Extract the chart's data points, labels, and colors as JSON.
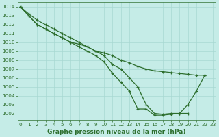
{
  "line_color": "#2d6e2d",
  "marker": "+",
  "markersize": 3.5,
  "linewidth": 0.9,
  "background_color": "#c5ece7",
  "grid_color": "#a8d8d2",
  "xlabel": "Graphe pression niveau de la mer (hPa)",
  "xlabel_fontsize": 6.5,
  "xlabel_color": "#2d6e2d",
  "tick_color": "#2d6e2d",
  "tick_fontsize": 5.2,
  "xlim": [
    -0.3,
    23.3
  ],
  "ylim": [
    1001.3,
    1014.5
  ],
  "yticks": [
    1002,
    1003,
    1004,
    1005,
    1006,
    1007,
    1008,
    1009,
    1010,
    1011,
    1012,
    1013,
    1014
  ],
  "xticks": [
    0,
    1,
    2,
    3,
    4,
    5,
    6,
    7,
    8,
    9,
    10,
    11,
    12,
    13,
    14,
    15,
    16,
    17,
    18,
    19,
    20,
    21,
    22,
    23
  ],
  "series1_x": [
    0,
    1,
    2,
    3,
    4,
    5,
    6,
    7,
    8,
    9,
    10,
    11,
    12,
    13,
    14,
    15,
    16,
    17,
    18,
    19,
    20,
    21,
    22
  ],
  "series1_y": [
    1014,
    1013.2,
    1012.5,
    1012.0,
    1011.5,
    1011.0,
    1010.5,
    1010.0,
    1009.5,
    1009.0,
    1008.8,
    1008.5,
    1008.0,
    1007.7,
    1007.3,
    1007.0,
    1006.8,
    1006.7,
    1006.6,
    1006.5,
    1006.4,
    1006.3,
    1006.3
  ],
  "series2_x": [
    0,
    1,
    2,
    3,
    4,
    5,
    6,
    7,
    8,
    9,
    10,
    11,
    12,
    13,
    14,
    15,
    16,
    17,
    18,
    19,
    20,
    21,
    22
  ],
  "series2_y": [
    1014,
    1013.0,
    1012.0,
    1011.5,
    1011.0,
    1010.5,
    1010.0,
    1009.8,
    1009.5,
    1009.0,
    1008.5,
    1007.5,
    1007.0,
    1006.0,
    1005.0,
    1003.0,
    1002.0,
    1001.9,
    1002.0,
    1002.0,
    1003.0,
    1004.5,
    1006.3
  ],
  "series3_x": [
    0,
    1,
    2,
    3,
    4,
    5,
    6,
    7,
    8,
    9,
    10,
    11,
    12,
    13,
    14,
    15,
    16,
    17,
    18,
    19,
    20
  ],
  "series3_y": [
    1014,
    1013.0,
    1012.0,
    1011.5,
    1011.0,
    1010.5,
    1010.0,
    1009.5,
    1009.0,
    1008.5,
    1007.8,
    1006.5,
    1005.5,
    1004.5,
    1002.5,
    1002.5,
    1001.8,
    1001.8,
    1001.9,
    1002.0,
    1002.0
  ]
}
